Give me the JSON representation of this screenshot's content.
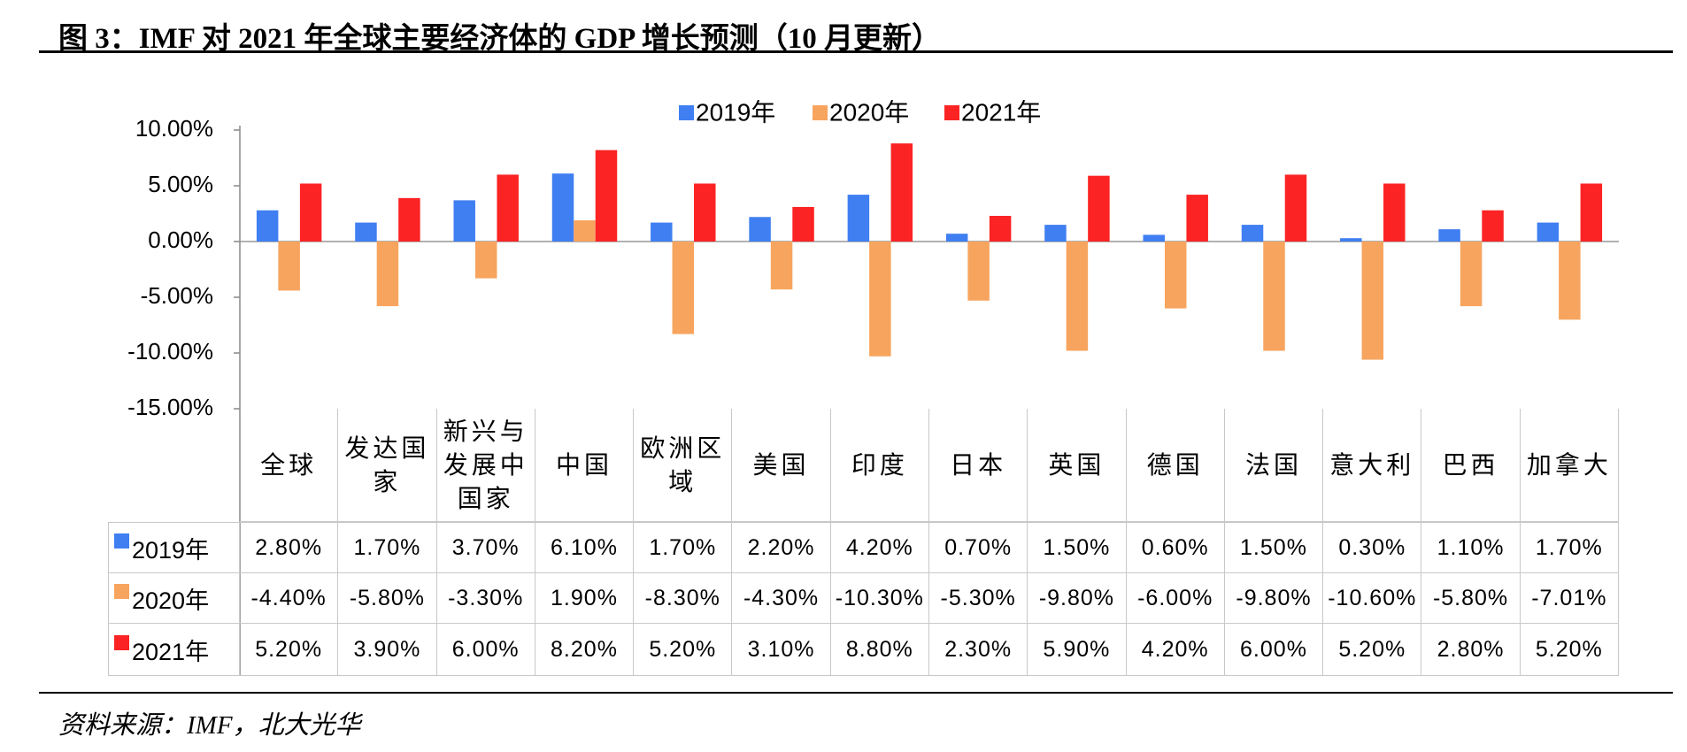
{
  "chart_data": {
    "type": "bar",
    "title": "图 3：IMF 对 2021 年全球主要经济体的 GDP 增长预测（10 月更新）",
    "source": "资料来源：IMF，北大光华",
    "categories": [
      "全球",
      "发达国家",
      "新兴与发展中国家",
      "中国",
      "欧洲区域",
      "美国",
      "印度",
      "日本",
      "英国",
      "德国",
      "法国",
      "意大利",
      "巴西",
      "加拿大"
    ],
    "series": [
      {
        "name": "2019年",
        "color": "#3f7ff2",
        "values": [
          2.8,
          1.7,
          3.7,
          6.1,
          1.7,
          2.2,
          4.2,
          0.7,
          1.5,
          0.6,
          1.5,
          0.3,
          1.1,
          1.7
        ],
        "value_labels": [
          "2.80%",
          "1.70%",
          "3.70%",
          "6.10%",
          "1.70%",
          "2.20%",
          "4.20%",
          "0.70%",
          "1.50%",
          "0.60%",
          "1.50%",
          "0.30%",
          "1.10%",
          "1.70%"
        ]
      },
      {
        "name": "2020年",
        "color": "#f7a45e",
        "values": [
          -4.4,
          -5.8,
          -3.3,
          1.9,
          -8.3,
          -4.3,
          -10.3,
          -5.3,
          -9.8,
          -6.0,
          -9.8,
          -10.6,
          -5.8,
          -7.01
        ],
        "value_labels": [
          "-4.40%",
          "-5.80%",
          "-3.30%",
          "1.90%",
          "-8.30%",
          "-4.30%",
          "-10.30%",
          "-5.30%",
          "-9.80%",
          "-6.00%",
          "-9.80%",
          "-10.60%",
          "-5.80%",
          "-7.01%"
        ]
      },
      {
        "name": "2021年",
        "color": "#fb2323",
        "values": [
          5.2,
          3.9,
          6.0,
          8.2,
          5.2,
          3.1,
          8.8,
          2.3,
          5.9,
          4.2,
          6.0,
          5.2,
          2.8,
          5.2
        ],
        "value_labels": [
          "5.20%",
          "3.90%",
          "6.00%",
          "8.20%",
          "5.20%",
          "3.10%",
          "8.80%",
          "2.30%",
          "5.90%",
          "4.20%",
          "6.00%",
          "5.20%",
          "2.80%",
          "5.20%"
        ]
      }
    ],
    "ylim": [
      -15,
      10
    ],
    "yticks": [
      {
        "value": -15,
        "label": "-15.00%"
      },
      {
        "value": -10,
        "label": "-10.00%"
      },
      {
        "value": -5,
        "label": "-5.00%"
      },
      {
        "value": 0,
        "label": "0.00%"
      },
      {
        "value": 5,
        "label": "5.00%"
      },
      {
        "value": 10,
        "label": "10.00%"
      }
    ],
    "legend": "top"
  }
}
